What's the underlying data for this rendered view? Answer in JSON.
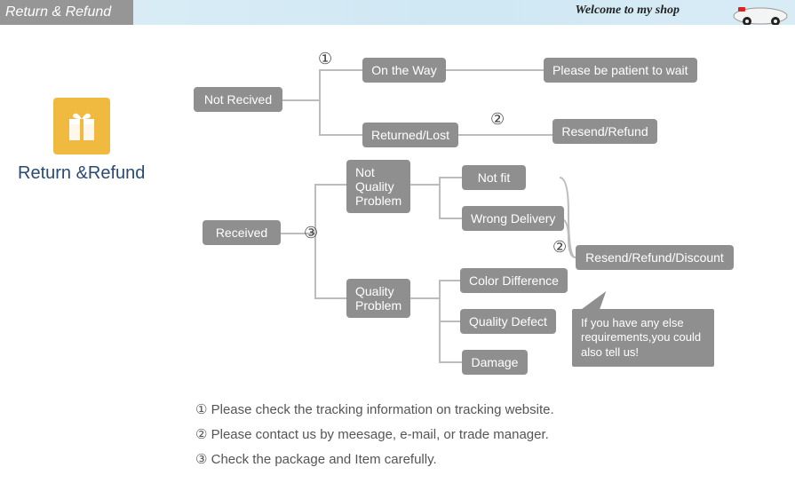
{
  "header": {
    "title": "Return & Refund",
    "welcome": "Welcome to my shop",
    "bg_left": "#969696",
    "bg_right": "#d9ecf6",
    "title_color": "#ffffff"
  },
  "sidebar": {
    "icon_bg": "#f0b940",
    "icon_name": "gift-icon",
    "label": "Return &Refund",
    "label_color": "#2a4a74"
  },
  "style": {
    "node_bg": "#8f8f8f",
    "node_text": "#ffffff",
    "connector_color": "#bcbcbc",
    "legend_color": "#555555",
    "node_fontsize": 14,
    "node_radius": 4
  },
  "flow": {
    "root_a": "Not Recived",
    "root_b": "Received",
    "a1": "On the Way",
    "a1_result": "Please be patient to wait",
    "a2": "Returned/Lost",
    "a2_result": "Resend/Refund",
    "b1": "Not\nQuality\nProblem",
    "b1a": "Not fit",
    "b1b": "Wrong Delivery",
    "b2": "Quality\nProblem",
    "b2a": "Color Difference",
    "b2b": "Quality Defect",
    "b2c": "Damage",
    "b_result": "Resend/Refund/Discount",
    "callout": "If you have any else requirements,you could also tell us!"
  },
  "markers": {
    "m1": "①",
    "m2": "②",
    "m3": "③"
  },
  "legend": {
    "l1": "Please check the tracking information on tracking website.",
    "l2": "Please contact us by meesage, e-mail, or trade manager.",
    "l3": "Check the package and Item carefully."
  },
  "positions": {
    "root_a": [
      218,
      98,
      100,
      30
    ],
    "root_b": [
      228,
      248,
      88,
      30
    ],
    "a1": [
      408,
      65,
      94,
      28
    ],
    "a1_result": [
      612,
      65,
      170,
      28
    ],
    "a2": [
      408,
      138,
      108,
      28
    ],
    "a2_result": [
      622,
      134,
      118,
      28
    ],
    "b1": [
      390,
      180,
      70,
      56
    ],
    "b1a": [
      520,
      186,
      72,
      28
    ],
    "b1b": [
      520,
      232,
      110,
      28
    ],
    "b2": [
      390,
      314,
      66,
      44
    ],
    "b2a": [
      518,
      302,
      120,
      28
    ],
    "b2b": [
      518,
      348,
      106,
      28
    ],
    "b2c": [
      520,
      394,
      74,
      28
    ],
    "b_result": [
      648,
      276,
      178,
      28
    ],
    "callout": [
      644,
      348
    ]
  }
}
